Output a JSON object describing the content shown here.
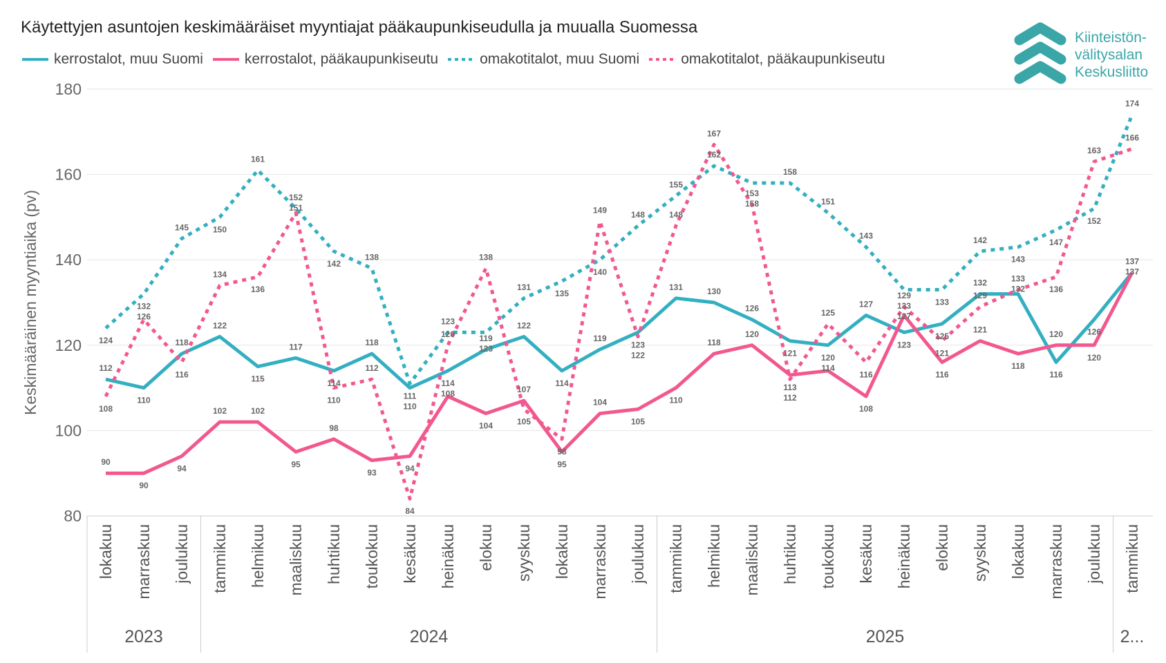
{
  "chart_data": {
    "type": "line",
    "title": "Käytettyjen asuntojen keskimääräiset myyntiajat pääkaupunkiseudulla ja muualla Suomessa",
    "ylabel": "Keskimääräinen myyntiaika (pv)",
    "xlabel": "",
    "ylim": [
      80,
      180
    ],
    "yticks": [
      80,
      100,
      120,
      140,
      160,
      180
    ],
    "grid": true,
    "legend_position": "top",
    "categories": [
      "lokakuu",
      "marraskuu",
      "joulukuu",
      "tammikuu",
      "helmikuu",
      "maaliskuu",
      "huhtikuu",
      "toukokuu",
      "kesäkuu",
      "heinäkuu",
      "elokuu",
      "syyskuu",
      "lokakuu",
      "marraskuu",
      "joulukuu",
      "tammikuu",
      "helmikuu",
      "maaliskuu",
      "huhtikuu",
      "toukokuu",
      "kesäkuu",
      "heinäkuu",
      "elokuu",
      "syyskuu",
      "lokakuu",
      "marraskuu",
      "joulukuu",
      "tammikuu"
    ],
    "years": [
      {
        "label": "2023",
        "count": 3
      },
      {
        "label": "2024",
        "count": 12
      },
      {
        "label": "2025",
        "count": 12
      },
      {
        "label": "2...",
        "count": 1
      }
    ],
    "series": [
      {
        "name": "kerrostalot, muu Suomi",
        "color": "#33AFC1",
        "style": "solid",
        "values": [
          112,
          110,
          118,
          122,
          115,
          117,
          114,
          118,
          110,
          114,
          119,
          122,
          114,
          119,
          123,
          131,
          130,
          126,
          121,
          120,
          127,
          123,
          125,
          132,
          132,
          116,
          126,
          137
        ]
      },
      {
        "name": "kerrostalot, pääkaupunkiseutu",
        "color": "#F2588F",
        "style": "solid",
        "values": [
          90,
          90,
          94,
          102,
          102,
          95,
          98,
          93,
          94,
          108,
          104,
          107,
          95,
          104,
          105,
          110,
          118,
          120,
          113,
          114,
          108,
          127,
          116,
          121,
          118,
          120,
          120,
          137
        ]
      },
      {
        "name": "omakotitalot, muu Suomi",
        "color": "#33AFC1",
        "style": "dotted",
        "values": [
          124,
          132,
          145,
          150,
          161,
          152,
          142,
          138,
          111,
          123,
          123,
          131,
          135,
          140,
          148,
          155,
          162,
          158,
          158,
          151,
          143,
          133,
          133,
          142,
          143,
          147,
          152,
          174
        ]
      },
      {
        "name": "omakotitalot, pääkaupunkiseutu",
        "color": "#F2588F",
        "style": "dotted",
        "values": [
          108,
          126,
          116,
          134,
          136,
          151,
          110,
          112,
          84,
          120,
          138,
          105,
          98,
          149,
          122,
          148,
          167,
          153,
          112,
          125,
          116,
          129,
          121,
          129,
          133,
          136,
          163,
          166
        ]
      }
    ]
  },
  "logo": {
    "line1": "Kiinteistön-",
    "line2": "välitysalan",
    "line3": "Keskusliitto"
  }
}
